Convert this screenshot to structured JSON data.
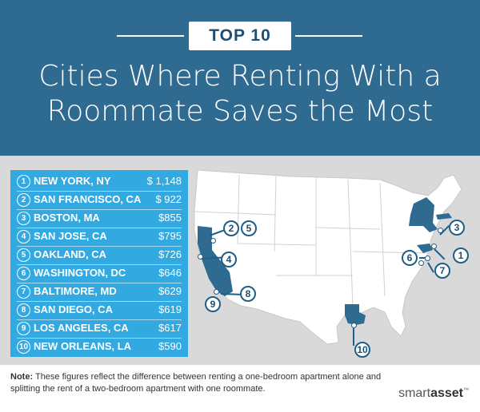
{
  "header": {
    "badge": "TOP 10",
    "title_line1": "Cities Where Renting With a",
    "title_line2": "Roommate Saves the Most"
  },
  "rankings": [
    {
      "rank": "1",
      "city": "NEW YORK, NY",
      "value": "$ 1,148"
    },
    {
      "rank": "2",
      "city": "SAN FRANCISCO, CA",
      "value": "$ 922"
    },
    {
      "rank": "3",
      "city": "BOSTON, MA",
      "value": "$855"
    },
    {
      "rank": "4",
      "city": "SAN JOSE, CA",
      "value": "$795"
    },
    {
      "rank": "5",
      "city": "OAKLAND, CA",
      "value": "$726"
    },
    {
      "rank": "6",
      "city": "WASHINGTON, DC",
      "value": "$646"
    },
    {
      "rank": "7",
      "city": "BALTIMORE, MD",
      "value": "$629"
    },
    {
      "rank": "8",
      "city": "SAN DIEGO, CA",
      "value": "$619"
    },
    {
      "rank": "9",
      "city": "LOS ANGELES, CA",
      "value": "$617"
    },
    {
      "rank": "10",
      "city": "NEW ORLEANS, LA",
      "value": "$590"
    }
  ],
  "map": {
    "markers": [
      "1",
      "2",
      "3",
      "4",
      "5",
      "6",
      "7",
      "8",
      "9",
      "10"
    ],
    "colors": {
      "base_state": "#ffffff",
      "highlight_state": "#2f6a91",
      "background": "#d9d9d9"
    }
  },
  "footer": {
    "note_label": "Note:",
    "note_text": "These figures reflect the difference between renting a one-bedroom apartment alone and splitting the rent of a two-bedroom apartment with one roommate.",
    "logo_smart": "smart",
    "logo_asset": "asset",
    "logo_tm": "™"
  },
  "colors": {
    "header_bg": "#2f6a91",
    "list_bg": "#32a9e0",
    "text_dark": "#1e4f73"
  }
}
